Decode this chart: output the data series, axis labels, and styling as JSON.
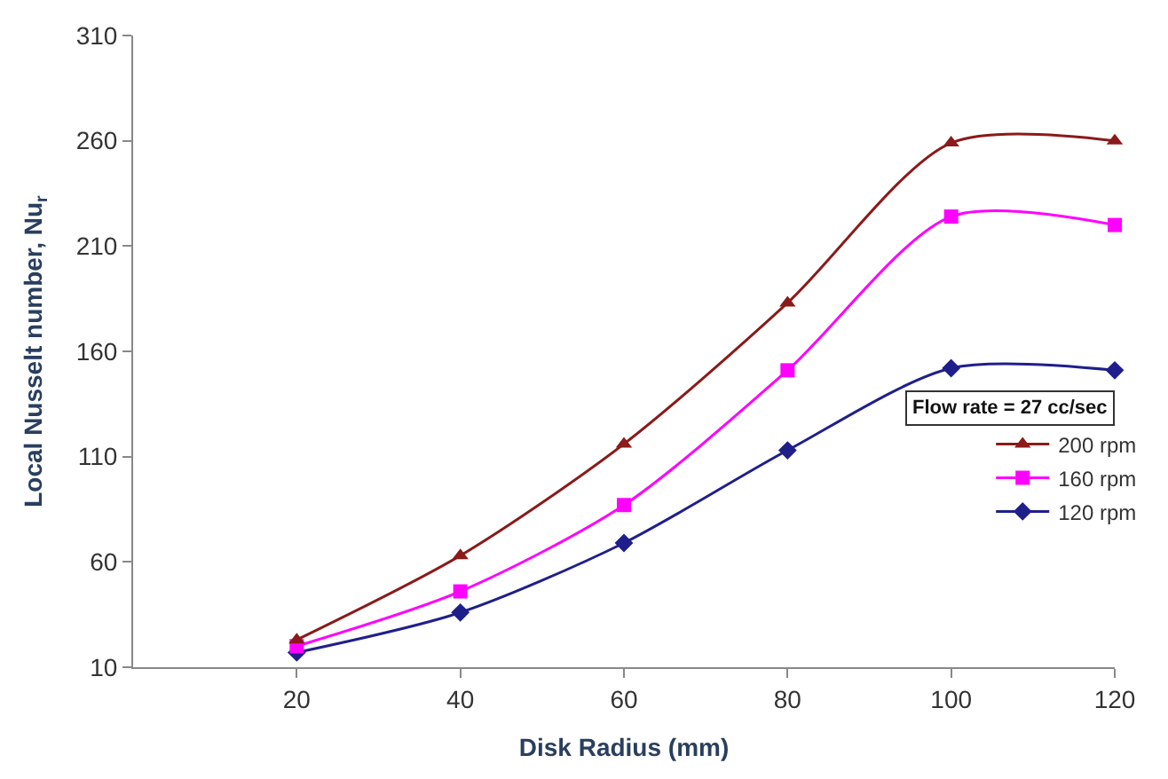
{
  "chart_data": {
    "type": "line",
    "xlabel": "Disk Radius (mm)",
    "ylabel": "Local Nusselt number, Nu$_{r}$",
    "x": [
      20,
      40,
      60,
      80,
      100,
      120
    ],
    "series": [
      {
        "name": "200 rpm",
        "color": "#8b1a1a",
        "marker": "triangle",
        "values": [
          23,
          63,
          116,
          183,
          259,
          260
        ]
      },
      {
        "name": "160 rpm",
        "color": "#ff00ff",
        "marker": "square",
        "values": [
          20,
          46,
          87,
          151,
          224,
          220
        ]
      },
      {
        "name": "120 rpm",
        "color": "#1f1f8c",
        "marker": "diamond",
        "values": [
          17,
          36,
          69,
          113,
          152,
          151
        ]
      }
    ],
    "xlim": [
      0,
      120
    ],
    "xticks": [
      20,
      40,
      60,
      80,
      100,
      120
    ],
    "ylim": [
      10,
      310
    ],
    "yticks": [
      10,
      60,
      110,
      160,
      210,
      260,
      310
    ],
    "annotations": [
      "Flow rate = 27 cc/sec"
    ],
    "legend": "right",
    "line_style": "solid"
  }
}
